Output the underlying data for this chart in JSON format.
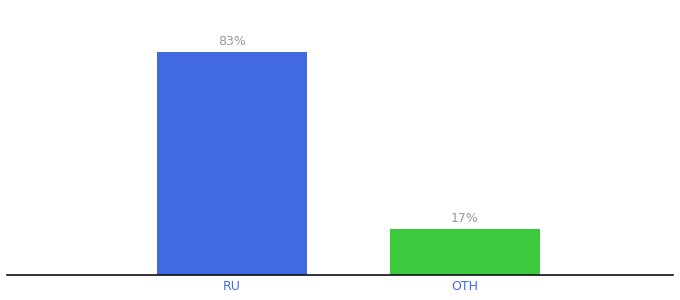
{
  "categories": [
    "RU",
    "OTH"
  ],
  "values": [
    83,
    17
  ],
  "bar_colors": [
    "#4169E1",
    "#3DC93D"
  ],
  "labels": [
    "83%",
    "17%"
  ],
  "background_color": "#ffffff",
  "bar_width": 0.18,
  "ylim": [
    0,
    100
  ],
  "xlabel_fontsize": 9,
  "label_fontsize": 9,
  "label_color": "#999999",
  "axis_color": "#4169E1",
  "x_positions": [
    0.37,
    0.65
  ],
  "xlim": [
    0.1,
    0.9
  ]
}
